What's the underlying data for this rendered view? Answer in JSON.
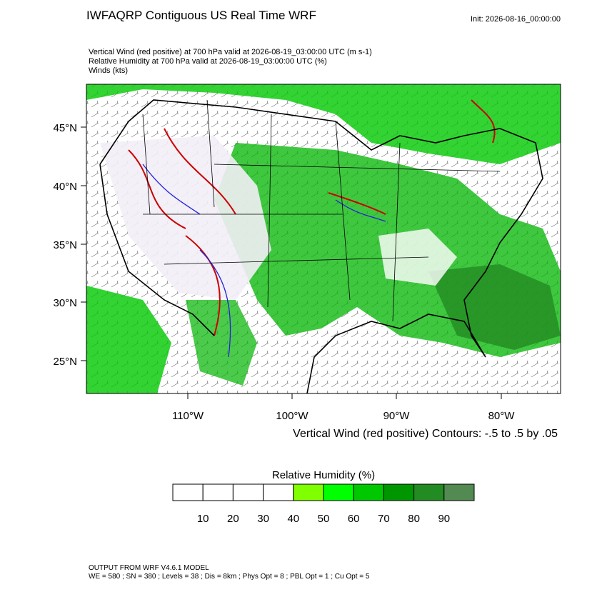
{
  "header": {
    "title": "IWFAQRP Contiguous US Real Time WRF",
    "init": "Init: 2026-08-16_00:00:00",
    "fields": [
      "Vertical Wind (red positive) at 700 hPa valid at 2026-08-19_03:00:00 UTC   (m s-1)",
      "Relative Humidity at 700 hPa valid at 2026-08-19_03:00:00 UTC   (%)",
      "Winds   (kts)"
    ]
  },
  "map": {
    "lat_labels": [
      "45°N",
      "40°N",
      "35°N",
      "30°N",
      "25°N"
    ],
    "lon_labels": [
      "110°W",
      "100°W",
      "90°W",
      "80°W"
    ],
    "contour_note": "Vertical Wind (red positive) Contours: -.5 to .5 by .05"
  },
  "colorbar": {
    "title": "Relative Humidity  (%)",
    "labels": [
      "10",
      "20",
      "30",
      "40",
      "50",
      "60",
      "70",
      "80",
      "90"
    ],
    "colors": [
      "#ffffff",
      "#ffffff",
      "#ffffff",
      "#ffffff",
      "#80ff00",
      "#00ff00",
      "#00c800",
      "#009600",
      "#228b22",
      "#528a52"
    ]
  },
  "footer": [
    "OUTPUT FROM WRF V4.6.1 MODEL",
    "WE = 580 ; SN = 380 ; Levels = 38 ; Dis = 8km ; Phys Opt = 8 ; PBL Opt = 1 ; Cu Opt = 5"
  ]
}
